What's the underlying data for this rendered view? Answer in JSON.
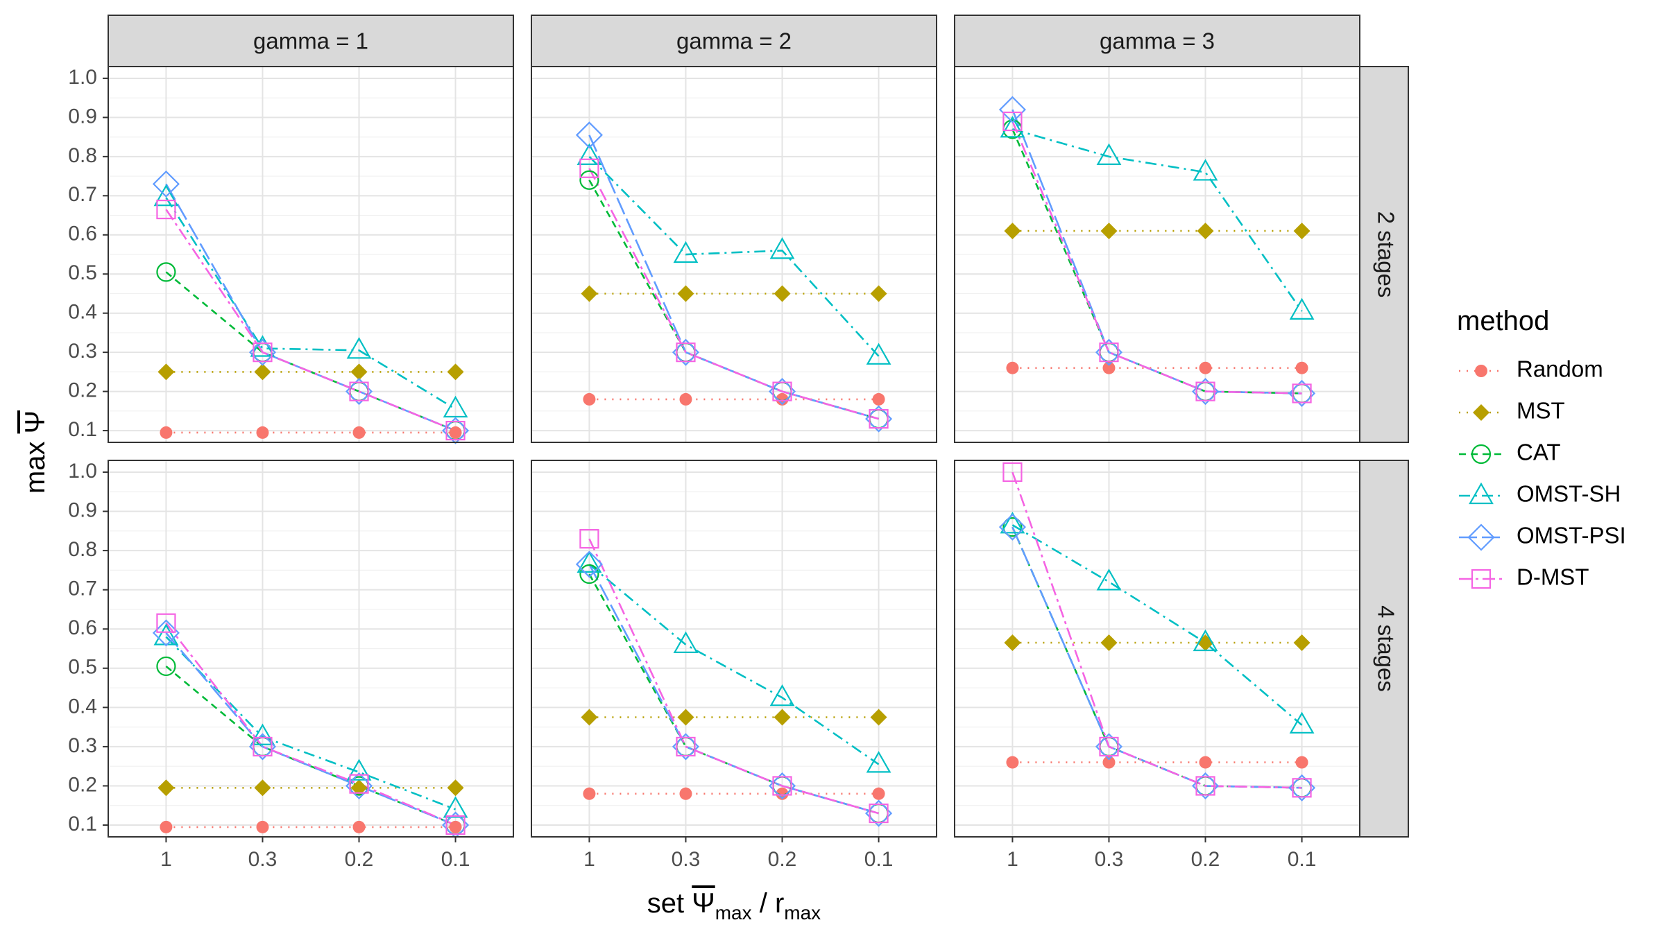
{
  "chart_data": {
    "type": "line",
    "facet_columns": [
      "gamma = 1",
      "gamma = 2",
      "gamma = 3"
    ],
    "facet_rows": [
      "2 stages",
      "4 stages"
    ],
    "categories": [
      "1",
      "0.3",
      "0.2",
      "0.1"
    ],
    "ylim": [
      0.07,
      1.03
    ],
    "yticks": [
      "0.1",
      "0.2",
      "0.3",
      "0.4",
      "0.5",
      "0.6",
      "0.7",
      "0.8",
      "0.9",
      "1.0"
    ],
    "ylabel": {
      "main": "max",
      "symbol": "Ψ"
    },
    "xlabel": {
      "lead": "set",
      "symbol": "Ψ",
      "sub1": "max",
      "sep": "/ r",
      "sub2": "max"
    },
    "grid": true,
    "legend": {
      "title": "method",
      "position": "right"
    },
    "series_styles": [
      {
        "name": "Random",
        "color": "#F8766D",
        "marker": "circle-filled",
        "dash": "2 9"
      },
      {
        "name": "MST",
        "color": "#B79F00",
        "marker": "diamond-filled",
        "dash": "2 9"
      },
      {
        "name": "CAT",
        "color": "#00BA38",
        "marker": "circle-open",
        "dash": "10 7"
      },
      {
        "name": "OMST-SH",
        "color": "#00BFC4",
        "marker": "triangle-open",
        "dash": "16 7 3 7"
      },
      {
        "name": "OMST-PSI",
        "color": "#619CFF",
        "marker": "diamond-open",
        "dash": "26 7"
      },
      {
        "name": "D-MST",
        "color": "#F564E3",
        "marker": "square-open",
        "dash": "18 6 4 6"
      }
    ],
    "panels": [
      {
        "row": 0,
        "col": 0,
        "series": [
          {
            "name": "Random",
            "values": [
              0.095,
              0.095,
              0.095,
              0.095
            ]
          },
          {
            "name": "MST",
            "values": [
              0.25,
              0.25,
              0.25,
              0.25
            ]
          },
          {
            "name": "CAT",
            "values": [
              0.505,
              0.3,
              0.2,
              0.1
            ]
          },
          {
            "name": "OMST-SH",
            "values": [
              0.695,
              0.31,
              0.305,
              0.155
            ]
          },
          {
            "name": "OMST-PSI",
            "values": [
              0.73,
              0.3,
              0.2,
              0.1
            ]
          },
          {
            "name": "D-MST",
            "values": [
              0.665,
              0.3,
              0.2,
              0.1
            ]
          }
        ]
      },
      {
        "row": 0,
        "col": 1,
        "series": [
          {
            "name": "Random",
            "values": [
              0.18,
              0.18,
              0.18,
              0.18
            ]
          },
          {
            "name": "MST",
            "values": [
              0.45,
              0.45,
              0.45,
              0.45
            ]
          },
          {
            "name": "CAT",
            "values": [
              0.74,
              0.3,
              0.2,
              0.13
            ]
          },
          {
            "name": "OMST-SH",
            "values": [
              0.8,
              0.55,
              0.56,
              0.29
            ]
          },
          {
            "name": "OMST-PSI",
            "values": [
              0.855,
              0.3,
              0.2,
              0.13
            ]
          },
          {
            "name": "D-MST",
            "values": [
              0.77,
              0.3,
              0.2,
              0.13
            ]
          }
        ]
      },
      {
        "row": 0,
        "col": 2,
        "series": [
          {
            "name": "Random",
            "values": [
              0.26,
              0.26,
              0.26,
              0.26
            ]
          },
          {
            "name": "MST",
            "values": [
              0.61,
              0.61,
              0.61,
              0.61
            ]
          },
          {
            "name": "CAT",
            "values": [
              0.87,
              0.3,
              0.2,
              0.195
            ]
          },
          {
            "name": "OMST-SH",
            "values": [
              0.87,
              0.8,
              0.76,
              0.405
            ]
          },
          {
            "name": "OMST-PSI",
            "values": [
              0.92,
              0.3,
              0.2,
              0.195
            ]
          },
          {
            "name": "D-MST",
            "values": [
              0.89,
              0.3,
              0.2,
              0.195
            ]
          }
        ]
      },
      {
        "row": 1,
        "col": 0,
        "series": [
          {
            "name": "Random",
            "values": [
              0.095,
              0.095,
              0.095,
              0.095
            ]
          },
          {
            "name": "MST",
            "values": [
              0.195,
              0.195,
              0.195,
              0.195
            ]
          },
          {
            "name": "CAT",
            "values": [
              0.505,
              0.3,
              0.2,
              0.1
            ]
          },
          {
            "name": "OMST-SH",
            "values": [
              0.58,
              0.325,
              0.235,
              0.14
            ]
          },
          {
            "name": "OMST-PSI",
            "values": [
              0.59,
              0.3,
              0.2,
              0.1
            ]
          },
          {
            "name": "D-MST",
            "values": [
              0.615,
              0.3,
              0.205,
              0.1
            ]
          }
        ]
      },
      {
        "row": 1,
        "col": 1,
        "series": [
          {
            "name": "Random",
            "values": [
              0.18,
              0.18,
              0.18,
              0.18
            ]
          },
          {
            "name": "MST",
            "values": [
              0.375,
              0.375,
              0.375,
              0.375
            ]
          },
          {
            "name": "CAT",
            "values": [
              0.74,
              0.3,
              0.2,
              0.13
            ]
          },
          {
            "name": "OMST-SH",
            "values": [
              0.765,
              0.56,
              0.425,
              0.255
            ]
          },
          {
            "name": "OMST-PSI",
            "values": [
              0.765,
              0.3,
              0.2,
              0.13
            ]
          },
          {
            "name": "D-MST",
            "values": [
              0.83,
              0.3,
              0.2,
              0.13
            ]
          }
        ]
      },
      {
        "row": 1,
        "col": 2,
        "series": [
          {
            "name": "Random",
            "values": [
              0.26,
              0.26,
              0.26,
              0.26
            ]
          },
          {
            "name": "MST",
            "values": [
              0.565,
              0.565,
              0.565,
              0.565
            ]
          },
          {
            "name": "CAT",
            "values": [
              0.86,
              0.3,
              0.2,
              0.195
            ]
          },
          {
            "name": "OMST-SH",
            "values": [
              0.865,
              0.72,
              0.565,
              0.355
            ]
          },
          {
            "name": "OMST-PSI",
            "values": [
              0.86,
              0.3,
              0.2,
              0.195
            ]
          },
          {
            "name": "D-MST",
            "values": [
              1.0,
              0.3,
              0.2,
              0.195
            ]
          }
        ]
      }
    ]
  }
}
